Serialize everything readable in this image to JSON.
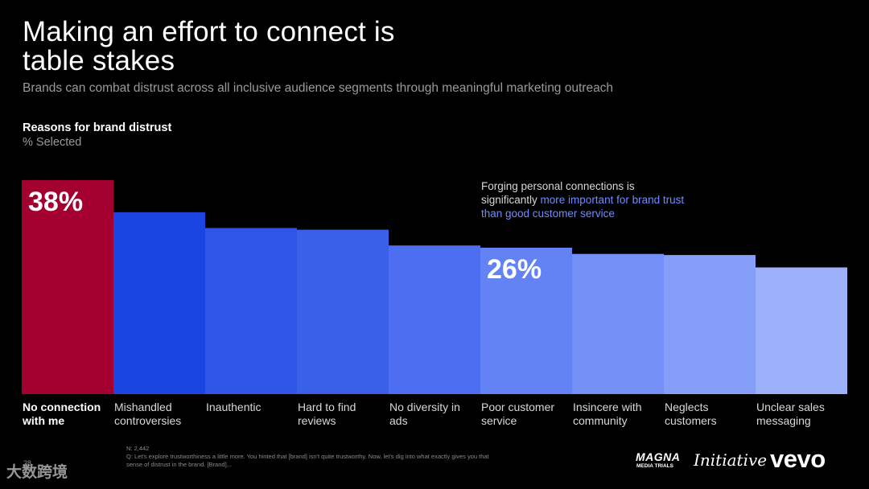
{
  "slide": {
    "title": "Making an effort to connect is\ntable stakes",
    "subtitle": "Brands can combat distrust across all inclusive audience segments through meaningful marketing outreach",
    "page_number": "28",
    "watermark": "大数跨境",
    "logos": {
      "magna_line1": "MAGNA",
      "magna_line2": "MEDIA TRIALS",
      "initiative": "Initiative",
      "vevo": "vevo"
    }
  },
  "note": {
    "text_before": "Forging personal connections is significantly ",
    "text_highlight": "more important for brand trust than good customer service"
  },
  "footnote": {
    "n": "N: 2,442",
    "question": "Q: Let's explore trustworthiness a little more. You hinted that [brand] isn't quite trustworthy. Now, let's dig into what exactly gives you that sense of distrust in the brand. [Brand]..."
  },
  "chart_data": {
    "type": "bar",
    "title": "Reasons for brand distrust",
    "unit_label": "% Selected",
    "categories": [
      "No connection with me",
      "Mishandled controversies",
      "Inauthentic",
      "Hard to find reviews",
      "No diversity in ads",
      "Poor customer service",
      "Insincere with community",
      "Neglects customers",
      "Unclear sales messaging"
    ],
    "values": [
      38,
      32.3,
      29.5,
      29.2,
      26.4,
      26,
      24.9,
      24.7,
      22.5
    ],
    "data_labels": [
      "38%",
      "",
      "",
      "",
      "",
      "26%",
      "",
      "",
      ""
    ],
    "colors": [
      "#a3002f",
      "#1b45e0",
      "#2d55e6",
      "#3a5fe8",
      "#4d6ef0",
      "#6382f4",
      "#7490f6",
      "#859ef8",
      "#9cb1fa"
    ],
    "highlight_index": 0,
    "ylim": [
      0,
      38
    ],
    "grid": false,
    "legend": "none"
  }
}
